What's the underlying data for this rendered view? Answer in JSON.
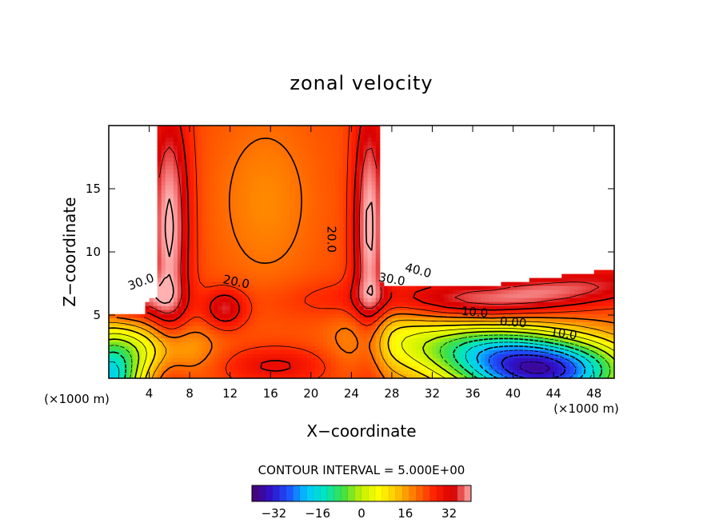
{
  "chart_data": {
    "type": "heatmap",
    "title": "zonal velocity",
    "xlabel": "X−coordinate",
    "ylabel": "Z−coordinate",
    "x_unit_left": "(×1000 m)",
    "x_unit_right": "(×1000 m)",
    "xlim": [
      0,
      50
    ],
    "ylim": [
      0,
      20
    ],
    "x_ticks": [
      4,
      8,
      12,
      16,
      20,
      24,
      28,
      32,
      36,
      40,
      44,
      48
    ],
    "x_tick_labels": [
      "4",
      "8",
      "12",
      "16",
      "20",
      "24",
      "28",
      "32",
      "36",
      "40",
      "44",
      "48"
    ],
    "y_ticks": [
      5,
      10,
      15
    ],
    "y_tick_labels": [
      "5",
      "10",
      "15"
    ],
    "contour_interval_label": "CONTOUR INTERVAL = 5.000E+00",
    "contour_labels": [
      {
        "text": "30.0",
        "x": 3.2,
        "z": 7.6,
        "angle": -20
      },
      {
        "text": "20.0",
        "x": 12.6,
        "z": 7.6,
        "angle": 12
      },
      {
        "text": "20.0",
        "x": 22.0,
        "z": 11.0,
        "angle": 90
      },
      {
        "text": "30.0",
        "x": 28.0,
        "z": 7.8,
        "angle": 10
      },
      {
        "text": "40.0",
        "x": 30.6,
        "z": 8.5,
        "angle": 15
      },
      {
        "text": "10.0",
        "x": 36.2,
        "z": 5.2,
        "angle": 5
      },
      {
        "text": "0.00",
        "x": 40.0,
        "z": 4.4,
        "angle": 5
      },
      {
        "text": "10.0",
        "x": 45.0,
        "z": 3.5,
        "angle": 8
      }
    ],
    "value_range": [
      -40,
      40
    ],
    "colorbar": {
      "range": [
        -40,
        40
      ],
      "ticks": [
        -32,
        -16,
        0,
        16,
        32
      ],
      "tick_labels": [
        "−32",
        "−16",
        "0",
        "16",
        "32"
      ]
    },
    "colormap": [
      "#4a006a",
      "#3010c8",
      "#1e50ff",
      "#00c8ff",
      "#00e6c0",
      "#40e040",
      "#c8f000",
      "#ffff00",
      "#ffc000",
      "#ff7000",
      "#ff2000",
      "#d80000",
      "#ffb0b0"
    ]
  }
}
